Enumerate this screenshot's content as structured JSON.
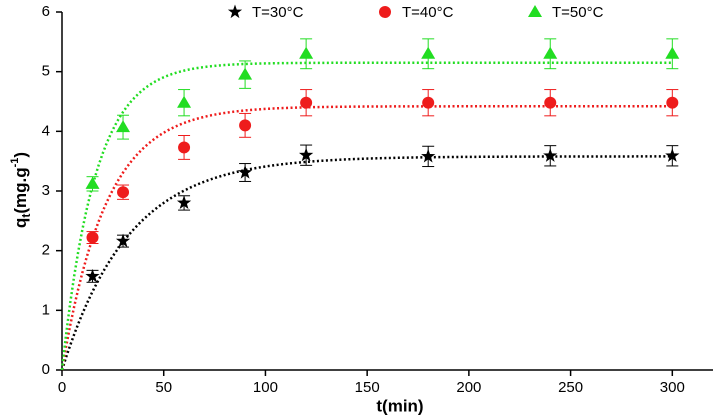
{
  "chart_data": {
    "type": "scatter",
    "xlabel": "t(min)",
    "ylabel": {
      "base": "q",
      "sub": "t",
      "mid": "(mg.g",
      "sup": "-1",
      "end": ")"
    },
    "xlim": [
      0,
      320
    ],
    "ylim": [
      0,
      6
    ],
    "xticks": [
      0,
      50,
      100,
      150,
      200,
      250,
      300
    ],
    "yticks": [
      0,
      1,
      2,
      3,
      4,
      5,
      6
    ],
    "series": [
      {
        "name": "T=30°C",
        "color": "#000000",
        "marker": "star",
        "x": [
          15,
          30,
          60,
          90,
          120,
          180,
          240,
          300
        ],
        "values": [
          1.57,
          2.16,
          2.8,
          3.31,
          3.6,
          3.58,
          3.59,
          3.59
        ],
        "errors": [
          0.1,
          0.1,
          0.12,
          0.15,
          0.17,
          0.17,
          0.17,
          0.17
        ],
        "fit": {
          "qe": 3.58,
          "k": 0.0305
        }
      },
      {
        "name": "T=40°C",
        "color": "#ee1c1c",
        "marker": "circle",
        "x": [
          15,
          30,
          60,
          90,
          120,
          180,
          240,
          300
        ],
        "values": [
          2.22,
          2.98,
          3.73,
          4.1,
          4.48,
          4.48,
          4.48,
          4.48
        ],
        "errors": [
          0.1,
          0.12,
          0.2,
          0.2,
          0.22,
          0.22,
          0.22,
          0.22
        ],
        "fit": {
          "qe": 4.42,
          "k": 0.046
        }
      },
      {
        "name": "T=50°C",
        "color": "#22dd22",
        "marker": "triangle",
        "x": [
          15,
          30,
          60,
          90,
          120,
          180,
          240,
          300
        ],
        "values": [
          3.12,
          4.07,
          4.48,
          4.95,
          5.3,
          5.3,
          5.3,
          5.3
        ],
        "errors": [
          0.12,
          0.2,
          0.22,
          0.23,
          0.25,
          0.25,
          0.25,
          0.25
        ],
        "fit": {
          "qe": 5.15,
          "k": 0.061
        }
      }
    ]
  }
}
